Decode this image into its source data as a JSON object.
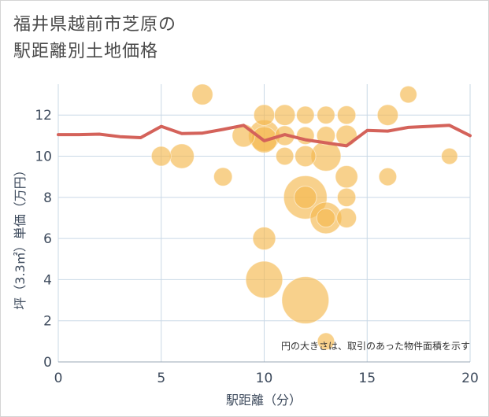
{
  "title_lines": [
    "福井県越前市芝原の",
    "駅距離別土地価格"
  ],
  "chart_data": {
    "type": "scatter",
    "xlabel": "駅距離（分）",
    "ylabel": "坪（3.3㎡）単価（万円）",
    "xlim": [
      0,
      20
    ],
    "ylim": [
      0,
      13.5
    ],
    "xticks": [
      0,
      5,
      10,
      15,
      20
    ],
    "yticks": [
      0,
      2,
      4,
      6,
      8,
      10,
      12
    ],
    "grid": true,
    "note": "円の大きさは、取引のあった物件面積を示す",
    "colors": {
      "bubble": "#f5b94f",
      "line": "#d4625a",
      "grid": "#c9d8e6"
    },
    "points": [
      {
        "x": 5,
        "y": 10,
        "size": 1
      },
      {
        "x": 6,
        "y": 10,
        "size": 2
      },
      {
        "x": 7,
        "y": 13,
        "size": 1.2
      },
      {
        "x": 8,
        "y": 9,
        "size": 0.8
      },
      {
        "x": 9,
        "y": 11,
        "size": 1.6
      },
      {
        "x": 10,
        "y": 12,
        "size": 1.2
      },
      {
        "x": 10,
        "y": 11,
        "size": 4
      },
      {
        "x": 10,
        "y": 10.8,
        "size": 2.4
      },
      {
        "x": 10,
        "y": 6,
        "size": 1.6
      },
      {
        "x": 10,
        "y": 4,
        "size": 6
      },
      {
        "x": 11,
        "y": 12,
        "size": 1.2
      },
      {
        "x": 11,
        "y": 11,
        "size": 1
      },
      {
        "x": 11,
        "y": 10,
        "size": 0.7
      },
      {
        "x": 12,
        "y": 12,
        "size": 0.7
      },
      {
        "x": 12,
        "y": 11,
        "size": 0.7
      },
      {
        "x": 12,
        "y": 10,
        "size": 1.2
      },
      {
        "x": 12,
        "y": 8,
        "size": 9
      },
      {
        "x": 12,
        "y": 8,
        "size": 1.5
      },
      {
        "x": 12,
        "y": 3,
        "size": 11
      },
      {
        "x": 13,
        "y": 12,
        "size": 0.7
      },
      {
        "x": 13,
        "y": 11,
        "size": 0.8
      },
      {
        "x": 13,
        "y": 10,
        "size": 3.5
      },
      {
        "x": 13,
        "y": 7,
        "size": 4
      },
      {
        "x": 13,
        "y": 7,
        "size": 0.8
      },
      {
        "x": 13,
        "y": 1,
        "size": 0.6
      },
      {
        "x": 14,
        "y": 12,
        "size": 0.8
      },
      {
        "x": 14,
        "y": 11,
        "size": 1.2
      },
      {
        "x": 14,
        "y": 9,
        "size": 1.5
      },
      {
        "x": 14,
        "y": 8,
        "size": 0.8
      },
      {
        "x": 14,
        "y": 7,
        "size": 1
      },
      {
        "x": 16,
        "y": 12,
        "size": 1.2
      },
      {
        "x": 16,
        "y": 9,
        "size": 0.7
      },
      {
        "x": 17,
        "y": 13,
        "size": 0.6
      },
      {
        "x": 19,
        "y": 10,
        "size": 0.5
      }
    ],
    "series": [
      {
        "x": [
          0,
          1,
          2,
          3,
          4,
          5,
          6,
          7,
          8,
          9,
          10,
          11,
          12,
          13,
          14,
          15,
          16,
          17,
          18,
          19,
          20
        ],
        "values": [
          11.05,
          11.05,
          11.07,
          10.95,
          10.9,
          11.45,
          11.1,
          11.12,
          11.3,
          11.5,
          10.75,
          11.05,
          10.8,
          10.65,
          10.5,
          11.25,
          11.22,
          11.4,
          11.45,
          11.5,
          11.0
        ]
      }
    ]
  }
}
